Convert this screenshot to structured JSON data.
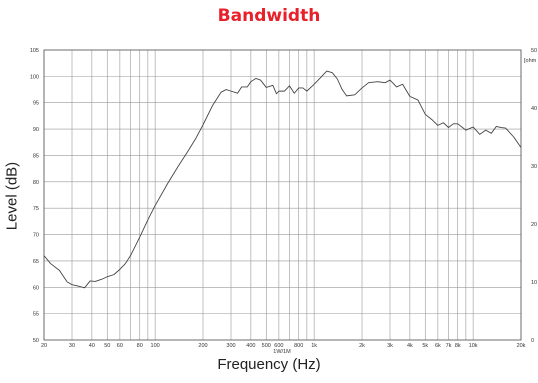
{
  "header": {
    "title": "Bandwidth"
  },
  "chart_data": {
    "type": "line",
    "title": "Bandwidth",
    "xlabel": "Frequency (Hz)",
    "ylabel": "Level (dB)",
    "x_scale": "log",
    "xlim": [
      20,
      20000
    ],
    "ylim": [
      50,
      105
    ],
    "y2lim": [
      0,
      50
    ],
    "y2_unit_label": "[ohm",
    "y2_ticks": [
      "0",
      "10",
      "20",
      "30",
      "40",
      "50"
    ],
    "y_ticks": [
      "50",
      "55",
      "60",
      "65",
      "70",
      "75",
      "80",
      "85",
      "90",
      "95",
      "100",
      "105"
    ],
    "x_ticks": [
      "20",
      "30",
      "40",
      "50",
      "60",
      "80",
      "100",
      "200",
      "300",
      "400",
      "500",
      "600",
      "800",
      "1k",
      "2k",
      "3k",
      "4k",
      "5k",
      "6k",
      "7k",
      "8k",
      "10k",
      "20k"
    ],
    "x_axis_note": "1W/1M",
    "grid": true,
    "series": [
      {
        "x": [
          20,
          22,
          25,
          28,
          30,
          33,
          36,
          39,
          42,
          46,
          50,
          55,
          60,
          65,
          70,
          80,
          90,
          100,
          120,
          140,
          160,
          180,
          200,
          230,
          260,
          280,
          300,
          330,
          350,
          380,
          400,
          430,
          460,
          500,
          550,
          580,
          600,
          650,
          700,
          750,
          800,
          850,
          900,
          1000,
          1100,
          1200,
          1300,
          1400,
          1500,
          1600,
          1800,
          2000,
          2200,
          2500,
          2800,
          3000,
          3300,
          3600,
          4000,
          4500,
          5000,
          5500,
          6000,
          6500,
          7000,
          7500,
          8000,
          9000,
          10000,
          11000,
          12000,
          13000,
          14000,
          15000,
          16000,
          18000,
          20000
        ],
        "y": [
          66.0,
          64.5,
          63.2,
          61.0,
          60.5,
          60.2,
          59.9,
          61.2,
          61.1,
          61.5,
          62.0,
          62.4,
          63.4,
          64.5,
          66.0,
          69.5,
          72.8,
          75.5,
          79.7,
          83.0,
          85.7,
          88.2,
          90.8,
          94.5,
          97.0,
          97.5,
          97.2,
          96.8,
          98.0,
          98.0,
          99.0,
          99.6,
          99.3,
          97.9,
          98.3,
          96.7,
          97.2,
          97.2,
          98.2,
          96.8,
          97.8,
          97.8,
          97.2,
          98.5,
          99.8,
          101.0,
          100.7,
          99.5,
          97.5,
          96.3,
          96.5,
          97.8,
          98.8,
          99.0,
          98.8,
          99.3,
          98.0,
          98.5,
          96.2,
          95.5,
          92.8,
          91.8,
          90.7,
          91.2,
          90.3,
          91.0,
          91.0,
          89.8,
          90.4,
          89.0,
          89.8,
          89.2,
          90.5,
          90.3,
          90.2,
          88.5,
          86.5
        ]
      }
    ]
  }
}
